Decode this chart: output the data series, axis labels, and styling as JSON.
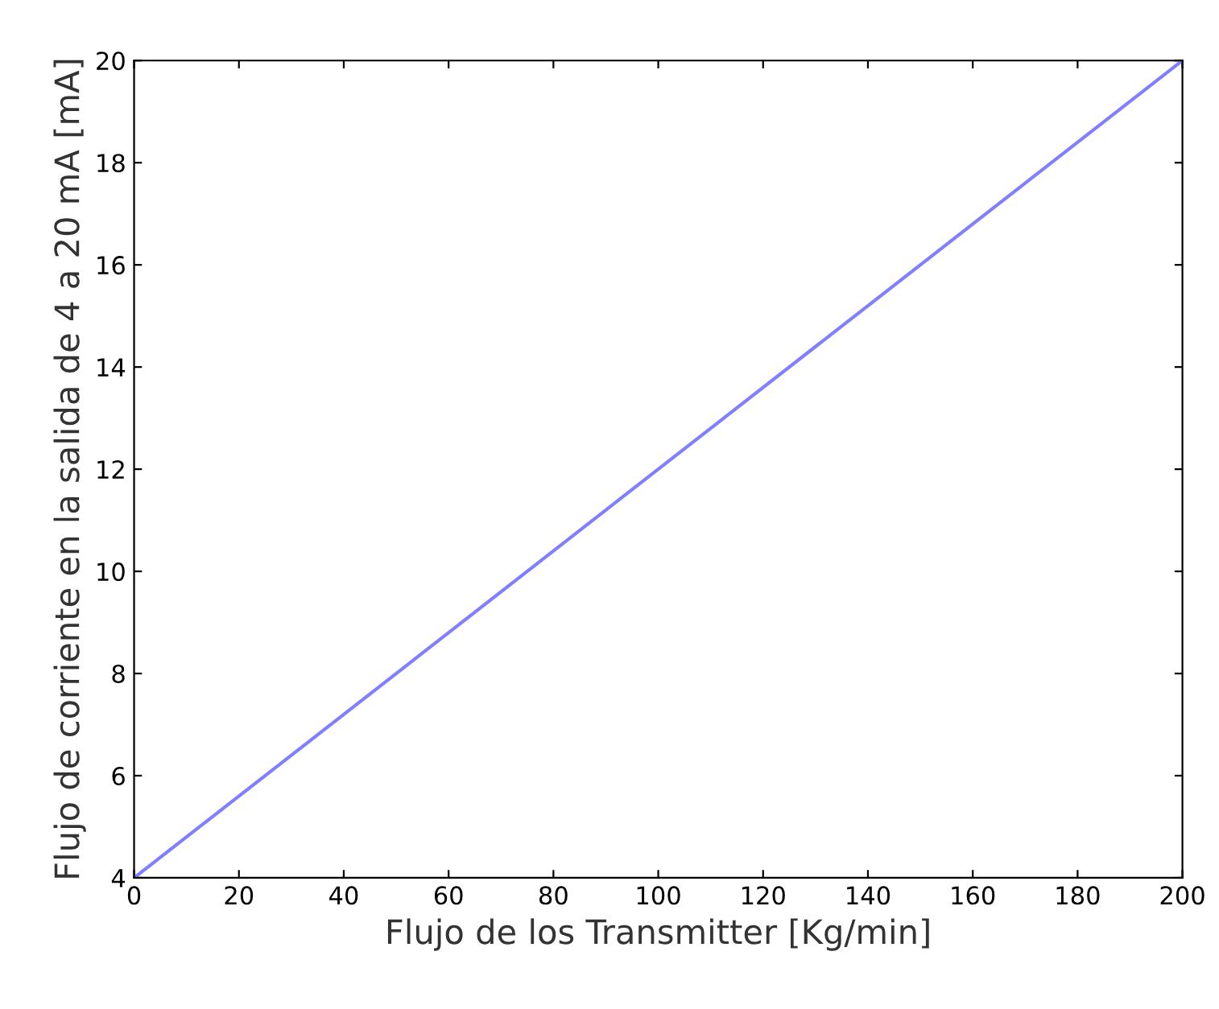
{
  "chart_data": {
    "type": "line",
    "xlabel": "Flujo de los Transmitter [Kg/min]",
    "ylabel": "Flujo de corriente en la salida de 4 a 20 mA [mA]",
    "x": [
      0,
      200
    ],
    "series": [
      {
        "color": "#7f7fff",
        "values": [
          4,
          20
        ]
      }
    ],
    "xlim": [
      0,
      200
    ],
    "ylim": [
      4,
      20
    ],
    "xticks": [
      0,
      20,
      40,
      60,
      80,
      100,
      120,
      140,
      160,
      180,
      200
    ],
    "yticks": [
      4,
      6,
      8,
      10,
      12,
      14,
      16,
      18,
      20
    ],
    "grid": false,
    "legend": false,
    "line_style": "solid",
    "marker": "none"
  }
}
